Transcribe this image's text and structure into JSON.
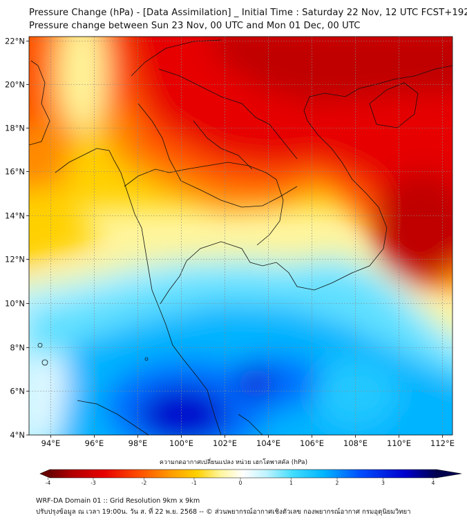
{
  "header": {
    "title": "Pressure Change (hPa) - [Data Assimilation] _ Initial Time : Saturday 22 Nov, 12 UTC FCST+192",
    "subtitle": "Pressure change between Sun 23 Nov, 00 UTC and Mon 01 Dec, 00 UTC"
  },
  "map": {
    "lat_labels": [
      "22°N",
      "20°N",
      "18°N",
      "16°N",
      "14°N",
      "12°N",
      "10°N",
      "8°N",
      "6°N",
      "4°N"
    ],
    "lon_labels": [
      "94°E",
      "96°E",
      "98°E",
      "100°E",
      "102°E",
      "104°E",
      "106°E",
      "108°E",
      "110°E",
      "112°E"
    ],
    "lat_range": [
      4,
      22.3
    ],
    "lon_range": [
      93,
      112.5
    ],
    "projection": "PlateCarree",
    "gridlines": true
  },
  "colorbar": {
    "label": "ความกดอากาศเปลี่ยนแปลง หน่วย เฮกโตพาสคัล (hPa)",
    "ticks": [
      "-4",
      "-3",
      "-2",
      "-1",
      "0",
      "1",
      "2",
      "3",
      "4"
    ],
    "range": [
      -4.3,
      4.3
    ],
    "colors": [
      "#6b0000",
      "#b30000",
      "#e60000",
      "#ff4d00",
      "#ff9900",
      "#ffd000",
      "#fff59a",
      "#ffffff",
      "#bff3ff",
      "#40dcff",
      "#00b4ff",
      "#0050ff",
      "#0000cc",
      "#00004d"
    ]
  },
  "footer": {
    "line1": "WRF-DA Domain 01 :: Grid Resolution 9km x 9km",
    "line2": "ปรับปรุงข้อมูล ณ เวลา 19:00น. วัน ส. ที่ 22 พ.ย. 2568 -- © ส่วนพยากรณ์อากาศเชิงตัวเลข กองพยากรณ์อากาศ กรมอุตุนิยมวิทยา"
  }
}
